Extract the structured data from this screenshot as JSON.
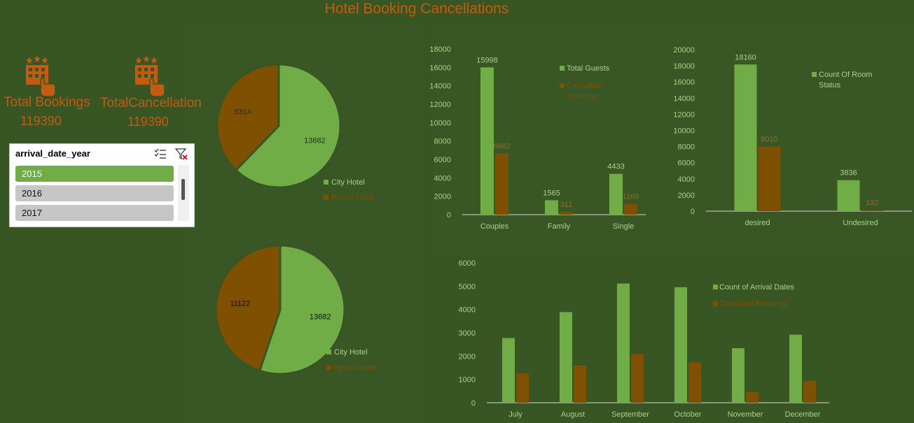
{
  "title": "Hotel Booking Cancellations",
  "kpis": [
    {
      "label": "Total Bookings",
      "value": "119390",
      "icon": "hotel-tap-icon"
    },
    {
      "label": "TotalCancellation",
      "value": "119390",
      "icon": "hotel-tap-icon"
    }
  ],
  "slicer": {
    "title": "arrival_date_year",
    "items": [
      "2015",
      "2016",
      "2017"
    ],
    "selected": "2015",
    "icons": [
      "multi-select-icon",
      "clear-filter-icon"
    ]
  },
  "colors": {
    "green": "#70ad47",
    "brown": "#7f5000",
    "orange": "#c55a11",
    "bg": "#375623"
  },
  "chart_data": [
    {
      "type": "pie",
      "categories": [
        "City Hotel",
        "Resort Hotel"
      ],
      "values": [
        13682,
        8314
      ],
      "legend": "bottom-right"
    },
    {
      "type": "pie",
      "categories": [
        "City Hotel",
        "Resort Hotel"
      ],
      "values": [
        13682,
        11122
      ],
      "legend": "bottom-right"
    },
    {
      "type": "bar",
      "categories": [
        "Couples",
        "Family",
        "Single"
      ],
      "series": [
        {
          "name": "Total Guests",
          "values": [
            15998,
            1565,
            4433
          ]
        },
        {
          "name": "Cancelled Bookings",
          "values": [
            6662,
            311,
            1169
          ]
        }
      ],
      "ylim": [
        0,
        18000
      ],
      "yticks": [
        0,
        2000,
        4000,
        6000,
        8000,
        10000,
        12000,
        14000,
        16000,
        18000
      ],
      "legend": "right",
      "grid": false
    },
    {
      "type": "bar",
      "categories": [
        "desired",
        "Undesired"
      ],
      "series": [
        {
          "name": "Count Of Room Status",
          "values": [
            18160,
            3836
          ]
        },
        {
          "name": "",
          "values": [
            8010,
            132
          ]
        }
      ],
      "ylim": [
        0,
        20000
      ],
      "yticks": [
        0,
        2000,
        4000,
        6000,
        8000,
        10000,
        12000,
        14000,
        16000,
        18000,
        20000
      ],
      "legend": "right",
      "grid": false
    },
    {
      "type": "bar",
      "categories": [
        "July",
        "August",
        "September",
        "October",
        "November",
        "December"
      ],
      "series": [
        {
          "name": "Count of Arrival Dates",
          "values": [
            2776,
            3889,
            5114,
            4957,
            2340,
            2920
          ]
        },
        {
          "name": "Cancelled Bookings",
          "values": [
            1259,
            1598,
            2094,
            1732,
            460,
            940
          ]
        }
      ],
      "ylim": [
        0,
        6000
      ],
      "yticks": [
        0,
        1000,
        2000,
        3000,
        4000,
        5000,
        6000
      ],
      "legend": "right",
      "grid": false
    }
  ]
}
